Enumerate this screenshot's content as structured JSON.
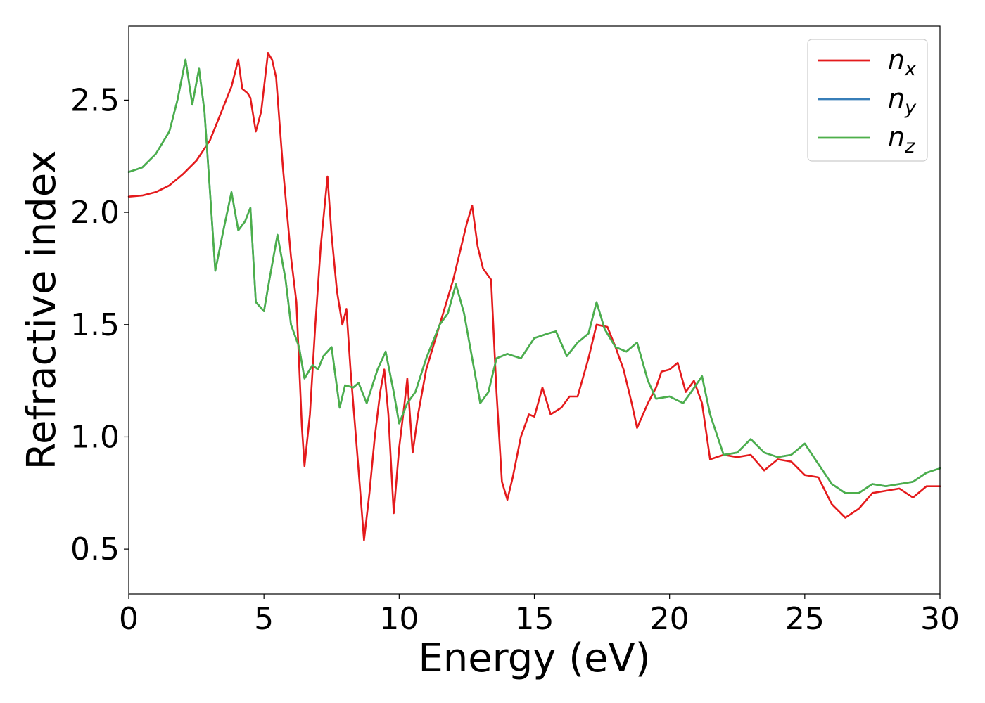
{
  "chart_data": {
    "type": "line",
    "title": "",
    "xlabel": "Energy (eV)",
    "ylabel": "Refractive index",
    "xlim": [
      0,
      30
    ],
    "ylim": [
      0.3,
      2.83
    ],
    "xticks": [
      0,
      5,
      10,
      15,
      20,
      25,
      30
    ],
    "xtick_labels": [
      "0",
      "5",
      "10",
      "15",
      "20",
      "25",
      "30"
    ],
    "yticks": [
      0.5,
      1.0,
      1.5,
      2.0,
      2.5
    ],
    "ytick_labels": [
      "0.5",
      "1.0",
      "1.5",
      "2.0",
      "2.5"
    ],
    "grid": false,
    "legend_position": "top-right",
    "series": [
      {
        "name": "n",
        "subscript": "x",
        "color": "#e41a1c",
        "points": [
          [
            0,
            2.07
          ],
          [
            0.5,
            2.075
          ],
          [
            1,
            2.09
          ],
          [
            1.5,
            2.12
          ],
          [
            2,
            2.17
          ],
          [
            2.5,
            2.23
          ],
          [
            3,
            2.32
          ],
          [
            3.5,
            2.47
          ],
          [
            3.8,
            2.56
          ],
          [
            4.05,
            2.68
          ],
          [
            4.2,
            2.55
          ],
          [
            4.4,
            2.53
          ],
          [
            4.5,
            2.51
          ],
          [
            4.7,
            2.36
          ],
          [
            4.9,
            2.45
          ],
          [
            5.15,
            2.71
          ],
          [
            5.3,
            2.68
          ],
          [
            5.45,
            2.6
          ],
          [
            5.7,
            2.2
          ],
          [
            6.0,
            1.8
          ],
          [
            6.2,
            1.6
          ],
          [
            6.4,
            1.05
          ],
          [
            6.5,
            0.87
          ],
          [
            6.7,
            1.1
          ],
          [
            6.9,
            1.5
          ],
          [
            7.1,
            1.85
          ],
          [
            7.35,
            2.16
          ],
          [
            7.5,
            1.9
          ],
          [
            7.7,
            1.65
          ],
          [
            7.9,
            1.5
          ],
          [
            8.05,
            1.57
          ],
          [
            8.2,
            1.3
          ],
          [
            8.5,
            0.85
          ],
          [
            8.7,
            0.54
          ],
          [
            8.9,
            0.75
          ],
          [
            9.1,
            1.0
          ],
          [
            9.3,
            1.2
          ],
          [
            9.45,
            1.3
          ],
          [
            9.6,
            1.1
          ],
          [
            9.8,
            0.66
          ],
          [
            10.0,
            0.95
          ],
          [
            10.2,
            1.15
          ],
          [
            10.3,
            1.26
          ],
          [
            10.5,
            0.93
          ],
          [
            10.7,
            1.1
          ],
          [
            11.0,
            1.3
          ],
          [
            11.5,
            1.5
          ],
          [
            12.0,
            1.7
          ],
          [
            12.3,
            1.85
          ],
          [
            12.5,
            1.95
          ],
          [
            12.7,
            2.03
          ],
          [
            12.9,
            1.85
          ],
          [
            13.1,
            1.75
          ],
          [
            13.4,
            1.7
          ],
          [
            13.6,
            1.2
          ],
          [
            13.8,
            0.8
          ],
          [
            14.0,
            0.72
          ],
          [
            14.2,
            0.82
          ],
          [
            14.5,
            1.0
          ],
          [
            14.8,
            1.1
          ],
          [
            15.0,
            1.09
          ],
          [
            15.3,
            1.22
          ],
          [
            15.6,
            1.1
          ],
          [
            16.0,
            1.13
          ],
          [
            16.3,
            1.18
          ],
          [
            16.6,
            1.18
          ],
          [
            17.0,
            1.35
          ],
          [
            17.3,
            1.5
          ],
          [
            17.7,
            1.49
          ],
          [
            18.0,
            1.4
          ],
          [
            18.3,
            1.3
          ],
          [
            18.6,
            1.15
          ],
          [
            18.8,
            1.04
          ],
          [
            19.2,
            1.15
          ],
          [
            19.5,
            1.22
          ],
          [
            19.7,
            1.29
          ],
          [
            20.0,
            1.3
          ],
          [
            20.3,
            1.33
          ],
          [
            20.6,
            1.2
          ],
          [
            20.9,
            1.25
          ],
          [
            21.2,
            1.15
          ],
          [
            21.5,
            0.9
          ],
          [
            22.0,
            0.92
          ],
          [
            22.5,
            0.91
          ],
          [
            23.0,
            0.92
          ],
          [
            23.5,
            0.85
          ],
          [
            24.0,
            0.9
          ],
          [
            24.5,
            0.89
          ],
          [
            25.0,
            0.83
          ],
          [
            25.5,
            0.82
          ],
          [
            26.0,
            0.7
          ],
          [
            26.5,
            0.64
          ],
          [
            27.0,
            0.68
          ],
          [
            27.5,
            0.75
          ],
          [
            28.0,
            0.76
          ],
          [
            28.5,
            0.77
          ],
          [
            29.0,
            0.73
          ],
          [
            29.5,
            0.78
          ],
          [
            30.0,
            0.78
          ]
        ]
      },
      {
        "name": "n",
        "subscript": "y",
        "color": "#377eb8",
        "points": [
          [
            0,
            2.18
          ],
          [
            0.5,
            2.2
          ],
          [
            1,
            2.26
          ],
          [
            1.5,
            2.36
          ],
          [
            1.8,
            2.5
          ],
          [
            2.1,
            2.68
          ],
          [
            2.2,
            2.6
          ],
          [
            2.35,
            2.48
          ],
          [
            2.6,
            2.64
          ],
          [
            2.8,
            2.45
          ],
          [
            3.0,
            2.1
          ],
          [
            3.2,
            1.74
          ],
          [
            3.5,
            1.92
          ],
          [
            3.8,
            2.09
          ],
          [
            4.05,
            1.92
          ],
          [
            4.3,
            1.96
          ],
          [
            4.5,
            2.02
          ],
          [
            4.7,
            1.6
          ],
          [
            5.0,
            1.56
          ],
          [
            5.2,
            1.7
          ],
          [
            5.5,
            1.9
          ],
          [
            5.8,
            1.7
          ],
          [
            6.0,
            1.5
          ],
          [
            6.3,
            1.4
          ],
          [
            6.5,
            1.26
          ],
          [
            6.8,
            1.32
          ],
          [
            7.0,
            1.3
          ],
          [
            7.2,
            1.36
          ],
          [
            7.5,
            1.4
          ],
          [
            7.8,
            1.13
          ],
          [
            8.0,
            1.23
          ],
          [
            8.3,
            1.22
          ],
          [
            8.5,
            1.24
          ],
          [
            8.8,
            1.15
          ],
          [
            9.2,
            1.3
          ],
          [
            9.5,
            1.38
          ],
          [
            9.8,
            1.2
          ],
          [
            10.0,
            1.06
          ],
          [
            10.3,
            1.15
          ],
          [
            10.6,
            1.2
          ],
          [
            11.0,
            1.35
          ],
          [
            11.5,
            1.5
          ],
          [
            11.8,
            1.55
          ],
          [
            12.1,
            1.68
          ],
          [
            12.4,
            1.55
          ],
          [
            12.7,
            1.35
          ],
          [
            13.0,
            1.15
          ],
          [
            13.3,
            1.2
          ],
          [
            13.6,
            1.35
          ],
          [
            14.0,
            1.37
          ],
          [
            14.5,
            1.35
          ],
          [
            15.0,
            1.44
          ],
          [
            15.5,
            1.46
          ],
          [
            15.8,
            1.47
          ],
          [
            16.2,
            1.36
          ],
          [
            16.6,
            1.42
          ],
          [
            17.0,
            1.46
          ],
          [
            17.3,
            1.6
          ],
          [
            17.6,
            1.48
          ],
          [
            18.0,
            1.4
          ],
          [
            18.4,
            1.38
          ],
          [
            18.8,
            1.42
          ],
          [
            19.2,
            1.25
          ],
          [
            19.5,
            1.17
          ],
          [
            20.0,
            1.18
          ],
          [
            20.5,
            1.15
          ],
          [
            20.8,
            1.2
          ],
          [
            21.2,
            1.27
          ],
          [
            21.5,
            1.1
          ],
          [
            22.0,
            0.92
          ],
          [
            22.5,
            0.93
          ],
          [
            23.0,
            0.99
          ],
          [
            23.5,
            0.93
          ],
          [
            24.0,
            0.91
          ],
          [
            24.5,
            0.92
          ],
          [
            25.0,
            0.97
          ],
          [
            25.5,
            0.88
          ],
          [
            26.0,
            0.79
          ],
          [
            26.5,
            0.75
          ],
          [
            27.0,
            0.75
          ],
          [
            27.5,
            0.79
          ],
          [
            28.0,
            0.78
          ],
          [
            28.5,
            0.79
          ],
          [
            29.0,
            0.8
          ],
          [
            29.5,
            0.84
          ],
          [
            30.0,
            0.86
          ]
        ]
      },
      {
        "name": "n",
        "subscript": "z",
        "color": "#4daf4a",
        "points": [
          [
            0,
            2.18
          ],
          [
            0.5,
            2.2
          ],
          [
            1,
            2.26
          ],
          [
            1.5,
            2.36
          ],
          [
            1.8,
            2.5
          ],
          [
            2.1,
            2.68
          ],
          [
            2.2,
            2.6
          ],
          [
            2.35,
            2.48
          ],
          [
            2.6,
            2.64
          ],
          [
            2.8,
            2.45
          ],
          [
            3.0,
            2.1
          ],
          [
            3.2,
            1.74
          ],
          [
            3.5,
            1.92
          ],
          [
            3.8,
            2.09
          ],
          [
            4.05,
            1.92
          ],
          [
            4.3,
            1.96
          ],
          [
            4.5,
            2.02
          ],
          [
            4.7,
            1.6
          ],
          [
            5.0,
            1.56
          ],
          [
            5.2,
            1.7
          ],
          [
            5.5,
            1.9
          ],
          [
            5.8,
            1.7
          ],
          [
            6.0,
            1.5
          ],
          [
            6.3,
            1.4
          ],
          [
            6.5,
            1.26
          ],
          [
            6.8,
            1.32
          ],
          [
            7.0,
            1.3
          ],
          [
            7.2,
            1.36
          ],
          [
            7.5,
            1.4
          ],
          [
            7.8,
            1.13
          ],
          [
            8.0,
            1.23
          ],
          [
            8.3,
            1.22
          ],
          [
            8.5,
            1.24
          ],
          [
            8.8,
            1.15
          ],
          [
            9.2,
            1.3
          ],
          [
            9.5,
            1.38
          ],
          [
            9.8,
            1.2
          ],
          [
            10.0,
            1.06
          ],
          [
            10.3,
            1.15
          ],
          [
            10.6,
            1.2
          ],
          [
            11.0,
            1.35
          ],
          [
            11.5,
            1.5
          ],
          [
            11.8,
            1.55
          ],
          [
            12.1,
            1.68
          ],
          [
            12.4,
            1.55
          ],
          [
            12.7,
            1.35
          ],
          [
            13.0,
            1.15
          ],
          [
            13.3,
            1.2
          ],
          [
            13.6,
            1.35
          ],
          [
            14.0,
            1.37
          ],
          [
            14.5,
            1.35
          ],
          [
            15.0,
            1.44
          ],
          [
            15.5,
            1.46
          ],
          [
            15.8,
            1.47
          ],
          [
            16.2,
            1.36
          ],
          [
            16.6,
            1.42
          ],
          [
            17.0,
            1.46
          ],
          [
            17.3,
            1.6
          ],
          [
            17.6,
            1.48
          ],
          [
            18.0,
            1.4
          ],
          [
            18.4,
            1.38
          ],
          [
            18.8,
            1.42
          ],
          [
            19.2,
            1.25
          ],
          [
            19.5,
            1.17
          ],
          [
            20.0,
            1.18
          ],
          [
            20.5,
            1.15
          ],
          [
            20.8,
            1.2
          ],
          [
            21.2,
            1.27
          ],
          [
            21.5,
            1.1
          ],
          [
            22.0,
            0.92
          ],
          [
            22.5,
            0.93
          ],
          [
            23.0,
            0.99
          ],
          [
            23.5,
            0.93
          ],
          [
            24.0,
            0.91
          ],
          [
            24.5,
            0.92
          ],
          [
            25.0,
            0.97
          ],
          [
            25.5,
            0.88
          ],
          [
            26.0,
            0.79
          ],
          [
            26.5,
            0.75
          ],
          [
            27.0,
            0.75
          ],
          [
            27.5,
            0.79
          ],
          [
            28.0,
            0.78
          ],
          [
            28.5,
            0.79
          ],
          [
            29.0,
            0.8
          ],
          [
            29.5,
            0.84
          ],
          [
            30.0,
            0.86
          ]
        ]
      }
    ]
  }
}
